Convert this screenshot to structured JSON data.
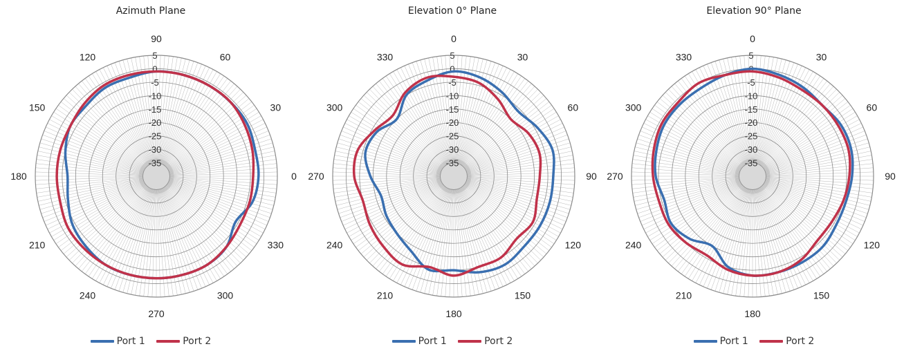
{
  "chart_data": [
    {
      "type": "polar-line",
      "title": "Azimuth Plane",
      "r_ticks": [
        "5",
        "0",
        "-5",
        "-10",
        "-15",
        "-20",
        "-25",
        "-30",
        "-35"
      ],
      "r_range": [
        -40,
        5
      ],
      "angle_labels": [
        "0",
        "30",
        "60",
        "90",
        "120",
        "150",
        "180",
        "210",
        "240",
        "270",
        "300",
        "330"
      ],
      "angle_direction": "counterclockwise",
      "angle_zero": "right",
      "legend_position": "bottom",
      "series": [
        {
          "name": "Port 1",
          "color": "#3a6fb0",
          "angles": [
            0,
            15,
            30,
            45,
            60,
            75,
            90,
            105,
            120,
            135,
            150,
            165,
            180,
            195,
            210,
            225,
            240,
            255,
            270,
            285,
            300,
            315,
            330,
            345
          ],
          "values": [
            -2,
            -2,
            -1,
            -1,
            -1,
            -1,
            -1,
            -2,
            -2,
            -3,
            -3,
            -5,
            -7,
            -6,
            -4,
            -3,
            -2,
            -2,
            -2,
            -2,
            -2,
            -3,
            -6,
            -3
          ]
        },
        {
          "name": "Port 2",
          "color": "#c0324a",
          "angles": [
            0,
            15,
            30,
            45,
            60,
            75,
            90,
            105,
            120,
            135,
            150,
            165,
            180,
            195,
            210,
            225,
            240,
            255,
            270,
            285,
            300,
            315,
            330,
            345
          ],
          "values": [
            -4,
            -3,
            -2,
            -1,
            -1,
            -1,
            -1,
            -1,
            -1,
            -2,
            -3,
            -3,
            -3,
            -3,
            -2,
            -2,
            -2,
            -2,
            -2,
            -2,
            -2,
            -3,
            -4,
            -4
          ]
        }
      ]
    },
    {
      "type": "polar-line",
      "title": "Elevation 0° Plane",
      "r_ticks": [
        "5",
        "0",
        "-5",
        "-10",
        "-15",
        "-20",
        "-25",
        "-30",
        "-35"
      ],
      "r_range": [
        -40,
        5
      ],
      "angle_labels": [
        "0",
        "30",
        "60",
        "90",
        "120",
        "150",
        "180",
        "210",
        "240",
        "270",
        "300",
        "330"
      ],
      "angle_direction": "clockwise",
      "angle_zero": "top",
      "legend_position": "bottom",
      "series": [
        {
          "name": "Port 1",
          "color": "#3a6fb0",
          "angles": [
            0,
            15,
            30,
            45,
            60,
            75,
            90,
            105,
            120,
            135,
            150,
            165,
            180,
            195,
            210,
            225,
            240,
            255,
            270,
            285,
            300,
            315,
            330,
            345
          ],
          "values": [
            -1,
            -2,
            -4,
            -6,
            -4,
            -2,
            -3,
            -3,
            -3,
            -3,
            -2,
            -3,
            -5,
            -4,
            -8,
            -10,
            -11,
            -12,
            -9,
            -6,
            -7,
            -10,
            -5,
            -3
          ]
        },
        {
          "name": "Port 2",
          "color": "#c0324a",
          "angles": [
            0,
            15,
            30,
            45,
            60,
            75,
            90,
            105,
            120,
            135,
            150,
            165,
            180,
            195,
            210,
            225,
            240,
            255,
            270,
            285,
            300,
            315,
            330,
            345
          ],
          "values": [
            -3,
            -4,
            -7,
            -10,
            -8,
            -7,
            -8,
            -8,
            -6,
            -7,
            -5,
            -5,
            -3,
            -5,
            -2,
            -3,
            -4,
            -5,
            -3,
            -3,
            -6,
            -8,
            -4,
            -2
          ]
        }
      ]
    },
    {
      "type": "polar-line",
      "title": "Elevation 90° Plane",
      "r_ticks": [
        "5",
        "0",
        "-5",
        "-10",
        "-15",
        "-20",
        "-25",
        "-30",
        "-35"
      ],
      "r_range": [
        -40,
        5
      ],
      "angle_labels": [
        "0",
        "30",
        "60",
        "90",
        "120",
        "150",
        "180",
        "210",
        "240",
        "270",
        "300",
        "330"
      ],
      "angle_direction": "clockwise",
      "angle_zero": "top",
      "legend_position": "bottom",
      "series": [
        {
          "name": "Port 1",
          "color": "#3a6fb0",
          "angles": [
            0,
            15,
            30,
            45,
            60,
            75,
            90,
            105,
            120,
            135,
            150,
            165,
            180,
            195,
            210,
            225,
            240,
            255,
            270,
            285,
            300,
            315,
            330,
            345
          ],
          "values": [
            0,
            -1,
            -2,
            -3,
            -2,
            -2,
            -3,
            -4,
            -4,
            -3,
            -3,
            -3,
            -3,
            -5,
            -10,
            -7,
            -5,
            -6,
            -4,
            -3,
            -2,
            -2,
            -2,
            -1
          ]
        },
        {
          "name": "Port 2",
          "color": "#c0324a",
          "angles": [
            0,
            15,
            30,
            45,
            60,
            75,
            90,
            105,
            120,
            135,
            150,
            165,
            180,
            195,
            210,
            225,
            240,
            255,
            270,
            285,
            300,
            315,
            330,
            345
          ],
          "values": [
            -1,
            -2,
            -3,
            -3,
            -3,
            -3,
            -4,
            -5,
            -6,
            -6,
            -4,
            -3,
            -3,
            -4,
            -6,
            -5,
            -4,
            -4,
            -3,
            -2,
            -1,
            -1,
            0,
            -1
          ]
        }
      ]
    }
  ]
}
